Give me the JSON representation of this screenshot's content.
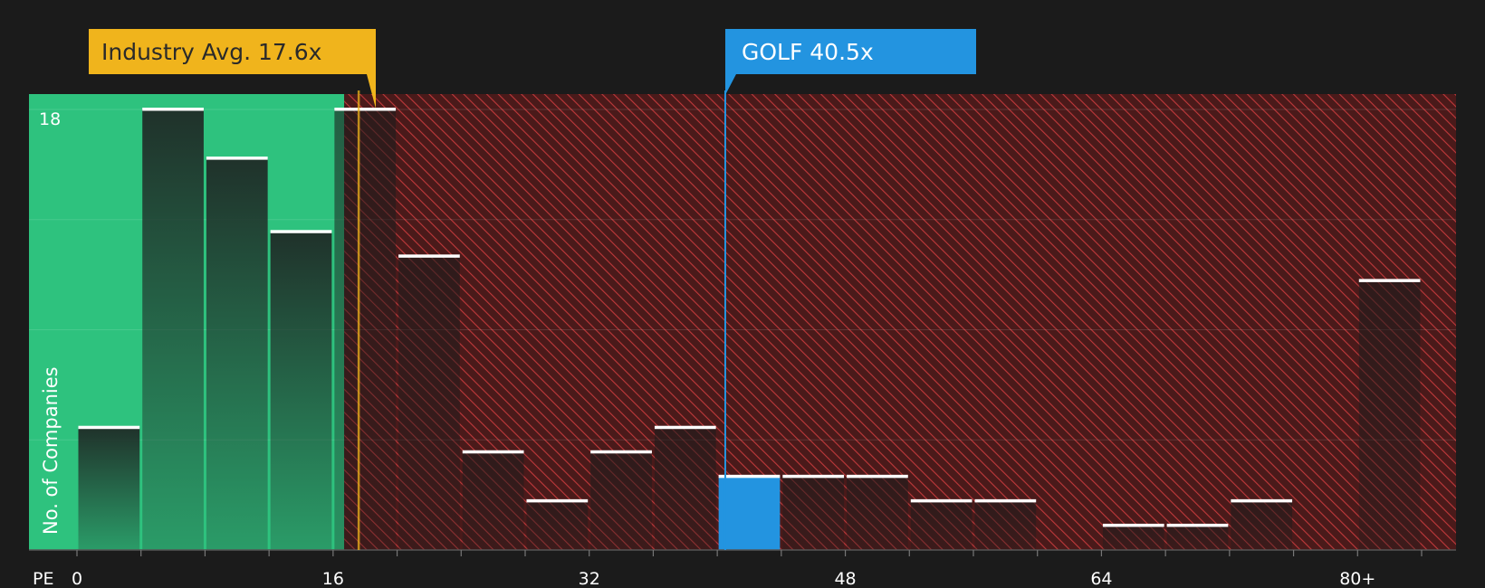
{
  "chart_data": {
    "type": "bar",
    "xlabel": "PE",
    "ylabel": "No. of Companies",
    "x_tick_labels": [
      "0",
      "16",
      "32",
      "48",
      "64",
      "80+"
    ],
    "x_tick_values": [
      0,
      16,
      32,
      48,
      64,
      80
    ],
    "y_tick_label": "18",
    "y_tick_value": 18,
    "ylim": [
      0,
      18.6
    ],
    "bin_width": 4,
    "bins": [
      {
        "x0": 0,
        "x1": 4,
        "value": 5
      },
      {
        "x0": 4,
        "x1": 8,
        "value": 18
      },
      {
        "x0": 8,
        "x1": 12,
        "value": 16
      },
      {
        "x0": 12,
        "x1": 16,
        "value": 13
      },
      {
        "x0": 16,
        "x1": 20,
        "value": 18
      },
      {
        "x0": 20,
        "x1": 24,
        "value": 12
      },
      {
        "x0": 24,
        "x1": 28,
        "value": 4
      },
      {
        "x0": 28,
        "x1": 32,
        "value": 2
      },
      {
        "x0": 32,
        "x1": 36,
        "value": 4
      },
      {
        "x0": 36,
        "x1": 40,
        "value": 5
      },
      {
        "x0": 40,
        "x1": 44,
        "value": 3,
        "highlight": true
      },
      {
        "x0": 44,
        "x1": 48,
        "value": 3
      },
      {
        "x0": 48,
        "x1": 52,
        "value": 3
      },
      {
        "x0": 52,
        "x1": 56,
        "value": 2
      },
      {
        "x0": 56,
        "x1": 60,
        "value": 2
      },
      {
        "x0": 60,
        "x1": 64,
        "value": 0
      },
      {
        "x0": 64,
        "x1": 68,
        "value": 1
      },
      {
        "x0": 68,
        "x1": 72,
        "value": 1
      },
      {
        "x0": 72,
        "x1": 76,
        "value": 2
      },
      {
        "x0": 76,
        "x1": 80,
        "value": 0
      },
      {
        "x0": 80,
        "x1": 84,
        "value": 11
      }
    ],
    "industry_avg": {
      "label": "Industry Avg. 17.6x",
      "value": 17.6
    },
    "company": {
      "label": "GOLF 40.5x",
      "value": 40.5
    },
    "grid": true
  },
  "colors": {
    "background": "#1b1b1b",
    "fair_zone": "#2ec27e",
    "over_zone": "#5a1c1c",
    "hatch": "#c0393b",
    "bar_dark": "#1f2a26",
    "highlight_bar": "#2394e0",
    "industry_callout": "#f0b41c",
    "company_callout": "#2394e0",
    "bar_cap": "#ffffff",
    "axis_text": "#ffffff"
  }
}
